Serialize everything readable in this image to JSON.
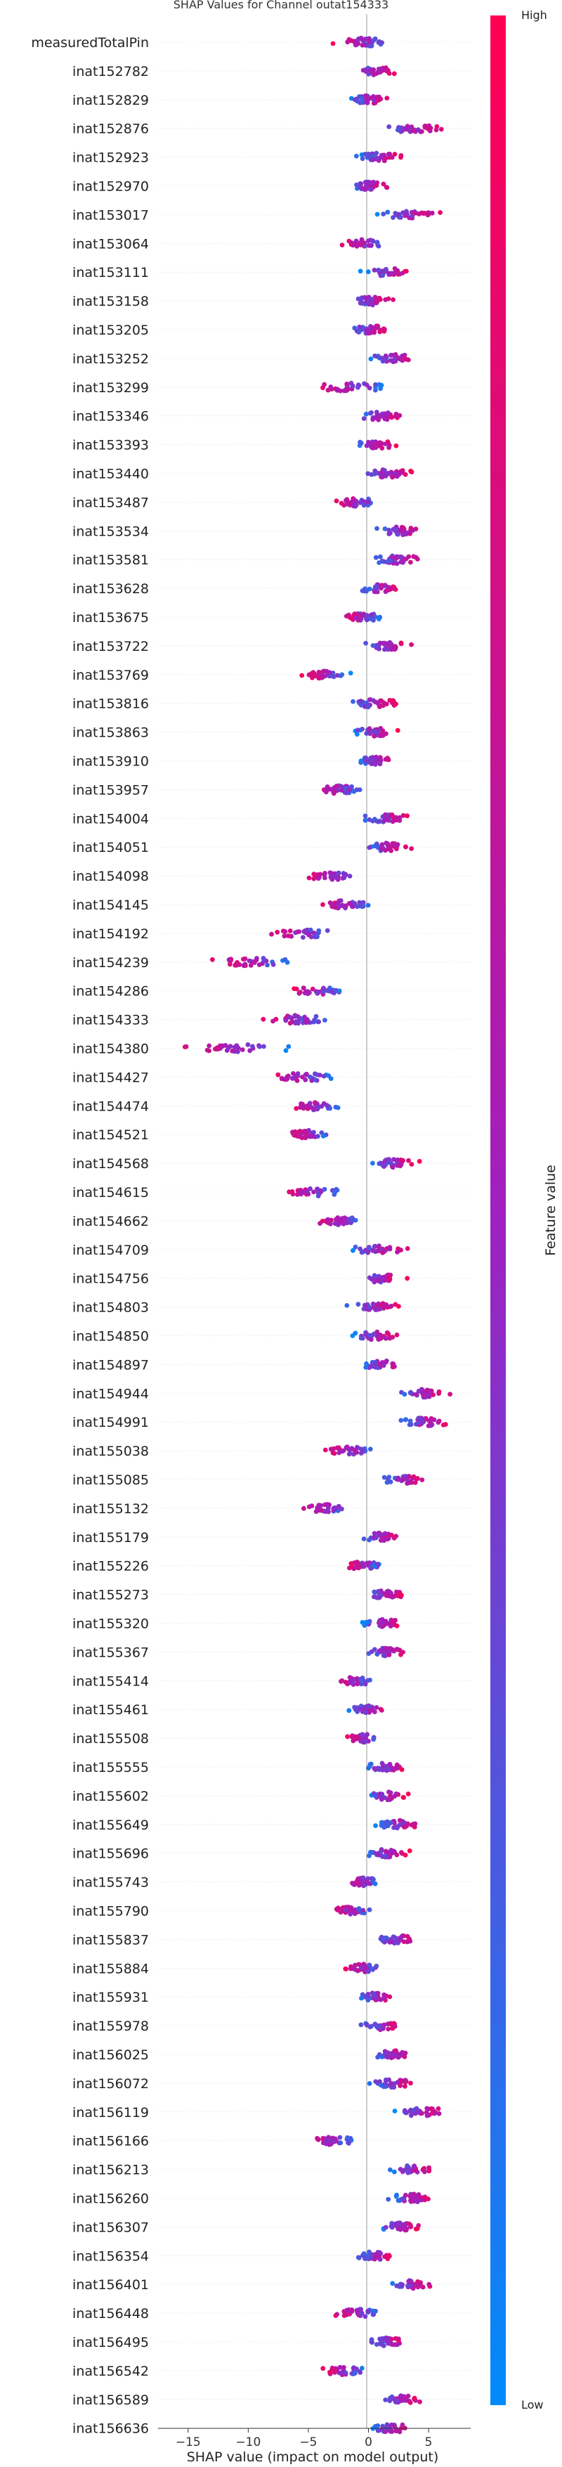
{
  "chart_data": {
    "type": "scatter",
    "title": "SHAP Values for Channel outat154333",
    "xlabel": "SHAP value (impact on model output)",
    "xlim": [
      -17.5,
      8.5
    ],
    "xticks": [
      "−15",
      "−10",
      "−5",
      "0",
      "5"
    ],
    "xtick_values": [
      -15,
      -10,
      -5,
      0,
      5
    ],
    "colorbar": {
      "label": "Feature value",
      "high": "High",
      "low": "Low",
      "low_color": "#008bfb",
      "high_color": "#ff0052"
    },
    "features": [
      {
        "name": "measuredTotalPin",
        "center": -0.5,
        "spread": 3.2
      },
      {
        "name": "inat152782",
        "center": 0.5,
        "spread": 2.5
      },
      {
        "name": "inat152829",
        "center": 0.0,
        "spread": 2.2
      },
      {
        "name": "inat152876",
        "center": 3.5,
        "spread": 3.2
      },
      {
        "name": "inat152923",
        "center": 0.8,
        "spread": 2.5
      },
      {
        "name": "inat152970",
        "center": 0.0,
        "spread": 2.2
      },
      {
        "name": "inat153017",
        "center": 3.5,
        "spread": 3.2
      },
      {
        "name": "inat153064",
        "center": -0.5,
        "spread": 2.0
      },
      {
        "name": "inat153111",
        "center": 1.5,
        "spread": 2.5
      },
      {
        "name": "inat153158",
        "center": 0.2,
        "spread": 2.2
      },
      {
        "name": "inat153205",
        "center": 0.2,
        "spread": 2.2
      },
      {
        "name": "inat153252",
        "center": 2.0,
        "spread": 2.5
      },
      {
        "name": "inat153299",
        "center": -1.5,
        "spread": 3.8
      },
      {
        "name": "inat153346",
        "center": 1.0,
        "spread": 2.5
      },
      {
        "name": "inat153393",
        "center": 0.5,
        "spread": 2.5
      },
      {
        "name": "inat153440",
        "center": 1.5,
        "spread": 2.5
      },
      {
        "name": "inat153487",
        "center": -1.0,
        "spread": 2.2
      },
      {
        "name": "inat153534",
        "center": 2.5,
        "spread": 2.5
      },
      {
        "name": "inat153581",
        "center": 2.5,
        "spread": 3.0
      },
      {
        "name": "inat153628",
        "center": 1.0,
        "spread": 2.2
      },
      {
        "name": "inat153675",
        "center": -0.5,
        "spread": 2.2
      },
      {
        "name": "inat153722",
        "center": 1.5,
        "spread": 2.5
      },
      {
        "name": "inat153769",
        "center": -3.5,
        "spread": 2.5
      },
      {
        "name": "inat153816",
        "center": 0.5,
        "spread": 2.5
      },
      {
        "name": "inat153863",
        "center": 0.5,
        "spread": 2.2
      },
      {
        "name": "inat153910",
        "center": 0.5,
        "spread": 1.8
      },
      {
        "name": "inat153957",
        "center": -2.5,
        "spread": 2.5
      },
      {
        "name": "inat154004",
        "center": 1.5,
        "spread": 2.5
      },
      {
        "name": "inat154051",
        "center": 1.5,
        "spread": 2.5
      },
      {
        "name": "inat154098",
        "center": -3.0,
        "spread": 2.5
      },
      {
        "name": "inat154145",
        "center": -2.0,
        "spread": 2.5
      },
      {
        "name": "inat154192",
        "center": -5.5,
        "spread": 3.5
      },
      {
        "name": "inat154239",
        "center": -9.5,
        "spread": 4.5
      },
      {
        "name": "inat154286",
        "center": -4.0,
        "spread": 3.0
      },
      {
        "name": "inat154333",
        "center": -6.0,
        "spread": 3.5
      },
      {
        "name": "inat154380",
        "center": -11.0,
        "spread": 5.5
      },
      {
        "name": "inat154427",
        "center": -5.5,
        "spread": 3.5
      },
      {
        "name": "inat154474",
        "center": -4.5,
        "spread": 2.5
      },
      {
        "name": "inat154521",
        "center": -5.0,
        "spread": 2.0
      },
      {
        "name": "inat154568",
        "center": 2.0,
        "spread": 2.5
      },
      {
        "name": "inat154615",
        "center": -4.5,
        "spread": 3.5
      },
      {
        "name": "inat154662",
        "center": -2.5,
        "spread": 2.5
      },
      {
        "name": "inat154709",
        "center": 1.0,
        "spread": 2.8
      },
      {
        "name": "inat154756",
        "center": 1.0,
        "spread": 2.5
      },
      {
        "name": "inat154803",
        "center": 0.5,
        "spread": 2.5
      },
      {
        "name": "inat154850",
        "center": 0.5,
        "spread": 2.5
      },
      {
        "name": "inat154897",
        "center": 1.0,
        "spread": 2.0
      },
      {
        "name": "inat154944",
        "center": 4.5,
        "spread": 3.0
      },
      {
        "name": "inat154991",
        "center": 4.5,
        "spread": 3.0
      },
      {
        "name": "inat155038",
        "center": -1.5,
        "spread": 2.5
      },
      {
        "name": "inat155085",
        "center": 3.0,
        "spread": 2.5
      },
      {
        "name": "inat155132",
        "center": -3.5,
        "spread": 2.5
      },
      {
        "name": "inat155179",
        "center": 1.0,
        "spread": 2.2
      },
      {
        "name": "inat155226",
        "center": -0.5,
        "spread": 2.0
      },
      {
        "name": "inat155273",
        "center": 1.5,
        "spread": 2.2
      },
      {
        "name": "inat155320",
        "center": 1.0,
        "spread": 2.2
      },
      {
        "name": "inat155367",
        "center": 1.5,
        "spread": 2.2
      },
      {
        "name": "inat155414",
        "center": -1.0,
        "spread": 2.2
      },
      {
        "name": "inat155461",
        "center": 0.0,
        "spread": 2.0
      },
      {
        "name": "inat155508",
        "center": -0.5,
        "spread": 2.0
      },
      {
        "name": "inat155555",
        "center": 1.5,
        "spread": 2.2
      },
      {
        "name": "inat155602",
        "center": 1.5,
        "spread": 2.2
      },
      {
        "name": "inat155649",
        "center": 2.5,
        "spread": 2.5
      },
      {
        "name": "inat155696",
        "center": 1.5,
        "spread": 2.2
      },
      {
        "name": "inat155743",
        "center": -0.5,
        "spread": 2.0
      },
      {
        "name": "inat155790",
        "center": -1.5,
        "spread": 2.5
      },
      {
        "name": "inat155837",
        "center": 2.5,
        "spread": 2.2
      },
      {
        "name": "inat155884",
        "center": -0.5,
        "spread": 2.0
      },
      {
        "name": "inat155931",
        "center": 0.5,
        "spread": 2.0
      },
      {
        "name": "inat155978",
        "center": 1.0,
        "spread": 2.0
      },
      {
        "name": "inat156025",
        "center": 2.0,
        "spread": 2.2
      },
      {
        "name": "inat156072",
        "center": 2.0,
        "spread": 2.2
      },
      {
        "name": "inat156119",
        "center": 4.5,
        "spread": 3.0
      },
      {
        "name": "inat156166",
        "center": -3.0,
        "spread": 2.5
      },
      {
        "name": "inat156213",
        "center": 3.5,
        "spread": 2.5
      },
      {
        "name": "inat156260",
        "center": 3.5,
        "spread": 2.5
      },
      {
        "name": "inat156307",
        "center": 2.5,
        "spread": 2.2
      },
      {
        "name": "inat156354",
        "center": 0.5,
        "spread": 2.2
      },
      {
        "name": "inat156401",
        "center": 3.5,
        "spread": 2.2
      },
      {
        "name": "inat156448",
        "center": -1.0,
        "spread": 2.5
      },
      {
        "name": "inat156495",
        "center": 1.5,
        "spread": 2.2
      },
      {
        "name": "inat156542",
        "center": -2.0,
        "spread": 2.5
      },
      {
        "name": "inat156589",
        "center": 2.5,
        "spread": 2.2
      },
      {
        "name": "inat156636",
        "center": 2.0,
        "spread": 2.5
      }
    ]
  }
}
